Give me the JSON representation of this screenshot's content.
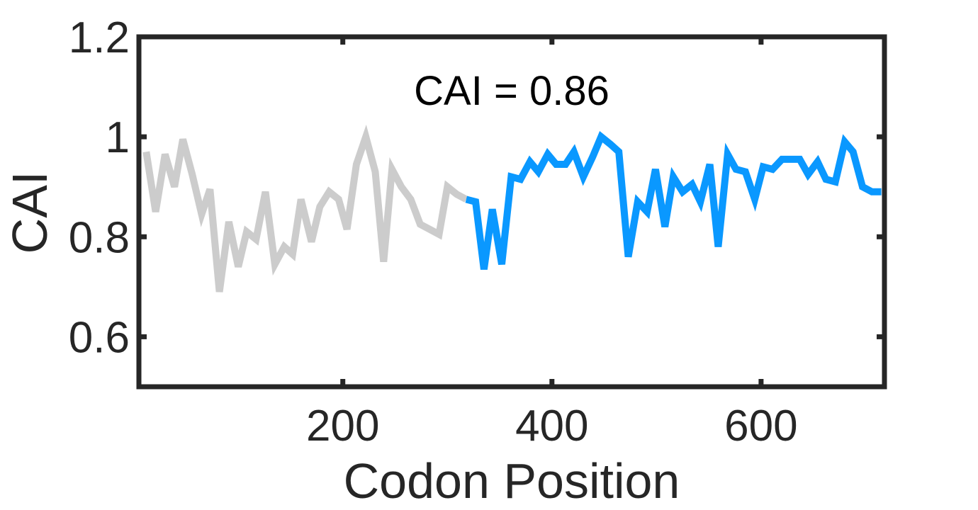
{
  "chart_data": {
    "type": "line",
    "xlabel": "Codon Position",
    "ylabel": "CAI",
    "xlim": [
      5,
      718
    ],
    "ylim": [
      0.5,
      1.2
    ],
    "xticks": [
      200,
      400,
      600
    ],
    "yticks": [
      0.6,
      0.8,
      1,
      1.2
    ],
    "ytick_labels": [
      "0.6",
      "0.8",
      "1",
      "1.2"
    ],
    "grid": false,
    "annotation": "CAI = 0.86",
    "series": [
      {
        "color": "#cccccc",
        "x": [
          12,
          21,
          30,
          39,
          47,
          56,
          65,
          73,
          82,
          91,
          100,
          108,
          117,
          126,
          135,
          144,
          152,
          160,
          170,
          178,
          187,
          196,
          204,
          213,
          222,
          231,
          239,
          247,
          256,
          265,
          274,
          283,
          292,
          300,
          309,
          318
        ],
        "y": [
          0.97,
          0.85,
          0.965,
          0.9,
          0.995,
          0.925,
          0.845,
          0.895,
          0.69,
          0.83,
          0.74,
          0.81,
          0.795,
          0.89,
          0.745,
          0.78,
          0.765,
          0.875,
          0.79,
          0.86,
          0.89,
          0.875,
          0.815,
          0.945,
          1.0,
          0.93,
          0.75,
          0.935,
          0.9,
          0.875,
          0.825,
          0.815,
          0.805,
          0.9,
          0.885,
          0.875
        ]
      },
      {
        "color": "#0a98ff",
        "x": [
          318,
          327,
          335,
          343,
          352,
          361,
          370,
          379,
          387,
          396,
          404,
          413,
          421,
          430,
          439,
          447,
          456,
          464,
          473,
          482,
          491,
          499,
          508,
          516,
          525,
          534,
          542,
          551,
          559,
          568,
          576,
          585,
          594,
          602,
          611,
          620,
          629,
          637,
          645,
          654,
          662,
          671,
          680,
          688,
          697,
          706,
          715
        ],
        "y": [
          0.875,
          0.87,
          0.735,
          0.855,
          0.745,
          0.92,
          0.915,
          0.95,
          0.93,
          0.965,
          0.945,
          0.945,
          0.97,
          0.92,
          0.96,
          1.0,
          0.985,
          0.97,
          0.76,
          0.87,
          0.85,
          0.935,
          0.82,
          0.92,
          0.89,
          0.905,
          0.87,
          0.945,
          0.78,
          0.965,
          0.935,
          0.93,
          0.875,
          0.94,
          0.935,
          0.955,
          0.955,
          0.955,
          0.925,
          0.95,
          0.915,
          0.91,
          0.99,
          0.97,
          0.9,
          0.89,
          0.89
        ]
      }
    ]
  }
}
